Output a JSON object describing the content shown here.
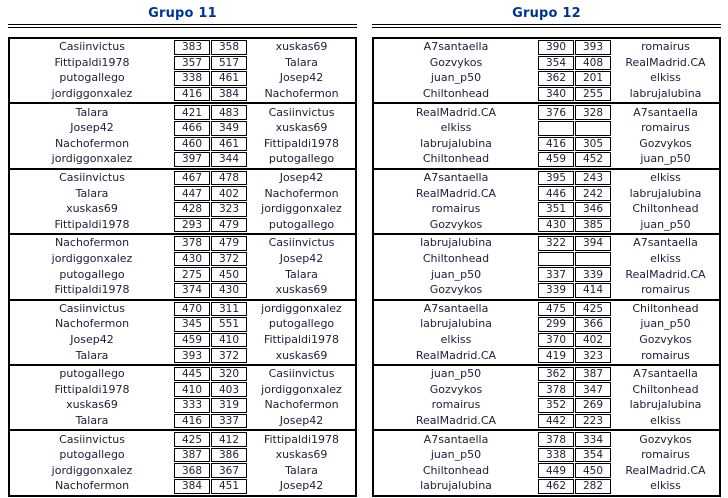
{
  "colors": {
    "header_text": "#003399",
    "table_text": "#20203a",
    "border": "#000000",
    "background": "#ffffff"
  },
  "groups": [
    {
      "title": "Grupo 11",
      "blocks": [
        {
          "matches": [
            {
              "home": "Casiinvictus",
              "score1": "383",
              "score2": "358",
              "away": "xuskas69"
            },
            {
              "home": "Fittipaldi1978",
              "score1": "357",
              "score2": "517",
              "away": "Talara"
            },
            {
              "home": "putogallego",
              "score1": "338",
              "score2": "461",
              "away": "Josep42"
            },
            {
              "home": "jordiggonxalez",
              "score1": "416",
              "score2": "384",
              "away": "Nachofermon"
            }
          ]
        },
        {
          "matches": [
            {
              "home": "Talara",
              "score1": "421",
              "score2": "483",
              "away": "Casiinvictus"
            },
            {
              "home": "Josep42",
              "score1": "466",
              "score2": "349",
              "away": "xuskas69"
            },
            {
              "home": "Nachofermon",
              "score1": "460",
              "score2": "461",
              "away": "Fittipaldi1978"
            },
            {
              "home": "jordiggonxalez",
              "score1": "397",
              "score2": "344",
              "away": "putogallego"
            }
          ]
        },
        {
          "matches": [
            {
              "home": "Casiinvictus",
              "score1": "467",
              "score2": "478",
              "away": "Josep42"
            },
            {
              "home": "Talara",
              "score1": "447",
              "score2": "402",
              "away": "Nachofermon"
            },
            {
              "home": "xuskas69",
              "score1": "428",
              "score2": "323",
              "away": "jordiggonxalez"
            },
            {
              "home": "Fittipaldi1978",
              "score1": "293",
              "score2": "479",
              "away": "putogallego"
            }
          ]
        },
        {
          "matches": [
            {
              "home": "Nachofermon",
              "score1": "378",
              "score2": "479",
              "away": "Casiinvictus"
            },
            {
              "home": "jordiggonxalez",
              "score1": "430",
              "score2": "372",
              "away": "Josep42"
            },
            {
              "home": "putogallego",
              "score1": "275",
              "score2": "450",
              "away": "Talara"
            },
            {
              "home": "Fittipaldi1978",
              "score1": "374",
              "score2": "430",
              "away": "xuskas69"
            }
          ]
        },
        {
          "matches": [
            {
              "home": "Casiinvictus",
              "score1": "470",
              "score2": "311",
              "away": "jordiggonxalez"
            },
            {
              "home": "Nachofermon",
              "score1": "345",
              "score2": "551",
              "away": "putogallego"
            },
            {
              "home": "Josep42",
              "score1": "459",
              "score2": "410",
              "away": "Fittipaldi1978"
            },
            {
              "home": "Talara",
              "score1": "393",
              "score2": "372",
              "away": "xuskas69"
            }
          ]
        },
        {
          "matches": [
            {
              "home": "putogallego",
              "score1": "445",
              "score2": "320",
              "away": "Casiinvictus"
            },
            {
              "home": "Fittipaldi1978",
              "score1": "410",
              "score2": "403",
              "away": "jordiggonxalez"
            },
            {
              "home": "xuskas69",
              "score1": "333",
              "score2": "319",
              "away": "Nachofermon"
            },
            {
              "home": "Talara",
              "score1": "416",
              "score2": "337",
              "away": "Josep42"
            }
          ]
        },
        {
          "matches": [
            {
              "home": "Casiinvictus",
              "score1": "425",
              "score2": "412",
              "away": "Fittipaldi1978"
            },
            {
              "home": "putogallego",
              "score1": "387",
              "score2": "386",
              "away": "xuskas69"
            },
            {
              "home": "jordiggonxalez",
              "score1": "368",
              "score2": "367",
              "away": "Talara"
            },
            {
              "home": "Nachofermon",
              "score1": "384",
              "score2": "451",
              "away": "Josep42"
            }
          ]
        }
      ]
    },
    {
      "title": "Grupo 12",
      "blocks": [
        {
          "matches": [
            {
              "home": "A7santaella",
              "score1": "390",
              "score2": "393",
              "away": "romairus"
            },
            {
              "home": "Gozvykos",
              "score1": "354",
              "score2": "408",
              "away": "RealMadrid.CA"
            },
            {
              "home": "juan_p50",
              "score1": "362",
              "score2": "201",
              "away": "elkiss"
            },
            {
              "home": "Chiltonhead",
              "score1": "340",
              "score2": "255",
              "away": "labrujalubina"
            }
          ]
        },
        {
          "matches": [
            {
              "home": "RealMadrid.CA",
              "score1": "376",
              "score2": "328",
              "away": "A7santaella"
            },
            {
              "home": "elkiss",
              "score1": "",
              "score2": "",
              "away": "romairus"
            },
            {
              "home": "labrujalubina",
              "score1": "416",
              "score2": "305",
              "away": "Gozvykos"
            },
            {
              "home": "Chiltonhead",
              "score1": "459",
              "score2": "452",
              "away": "juan_p50"
            }
          ]
        },
        {
          "matches": [
            {
              "home": "A7santaella",
              "score1": "395",
              "score2": "243",
              "away": "elkiss"
            },
            {
              "home": "RealMadrid.CA",
              "score1": "446",
              "score2": "242",
              "away": "labrujalubina"
            },
            {
              "home": "romairus",
              "score1": "351",
              "score2": "346",
              "away": "Chiltonhead"
            },
            {
              "home": "Gozvykos",
              "score1": "430",
              "score2": "385",
              "away": "juan_p50"
            }
          ]
        },
        {
          "matches": [
            {
              "home": "labrujalubina",
              "score1": "322",
              "score2": "394",
              "away": "A7santaella"
            },
            {
              "home": "Chiltonhead",
              "score1": "",
              "score2": "",
              "away": "elkiss"
            },
            {
              "home": "juan_p50",
              "score1": "337",
              "score2": "339",
              "away": "RealMadrid.CA"
            },
            {
              "home": "Gozvykos",
              "score1": "339",
              "score2": "414",
              "away": "romairus"
            }
          ]
        },
        {
          "matches": [
            {
              "home": "A7santaella",
              "score1": "475",
              "score2": "425",
              "away": "Chiltonhead"
            },
            {
              "home": "labrujalubina",
              "score1": "299",
              "score2": "366",
              "away": "juan_p50"
            },
            {
              "home": "elkiss",
              "score1": "370",
              "score2": "402",
              "away": "Gozvykos"
            },
            {
              "home": "RealMadrid.CA",
              "score1": "419",
              "score2": "323",
              "away": "romairus"
            }
          ]
        },
        {
          "matches": [
            {
              "home": "juan_p50",
              "score1": "362",
              "score2": "387",
              "away": "A7santaella"
            },
            {
              "home": "Gozvykos",
              "score1": "378",
              "score2": "347",
              "away": "Chiltonhead"
            },
            {
              "home": "romairus",
              "score1": "352",
              "score2": "269",
              "away": "labrujalubina"
            },
            {
              "home": "RealMadrid.CA",
              "score1": "442",
              "score2": "223",
              "away": "elkiss"
            }
          ]
        },
        {
          "matches": [
            {
              "home": "A7santaella",
              "score1": "378",
              "score2": "334",
              "away": "Gozvykos"
            },
            {
              "home": "juan_p50",
              "score1": "338",
              "score2": "354",
              "away": "romairus"
            },
            {
              "home": "Chiltonhead",
              "score1": "449",
              "score2": "450",
              "away": "RealMadrid.CA"
            },
            {
              "home": "labrujalubina",
              "score1": "462",
              "score2": "282",
              "away": "elkiss"
            }
          ]
        }
      ]
    }
  ]
}
